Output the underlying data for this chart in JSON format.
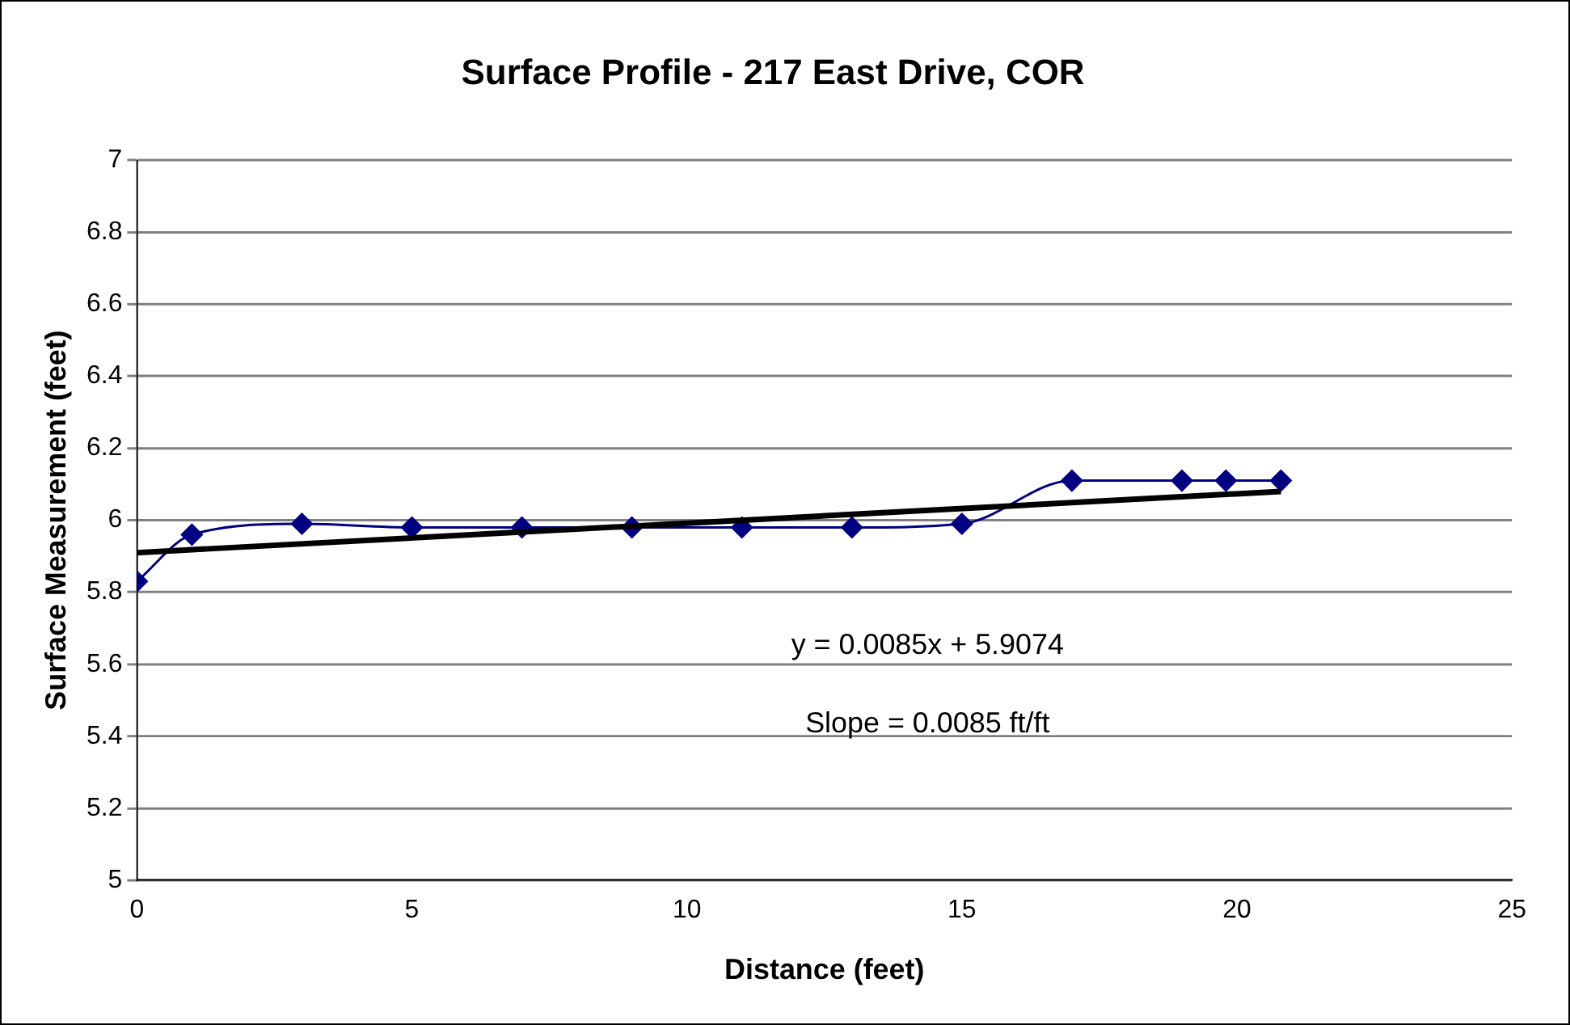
{
  "chart_data": {
    "type": "line",
    "title": "Surface Profile - 217 East Drive, COR",
    "xlabel": "Distance (feet)",
    "ylabel": "Surface Measurement (feet)",
    "x": [
      0,
      1,
      3,
      5,
      7,
      9,
      11,
      13,
      15,
      17,
      19,
      19.8,
      20.8
    ],
    "series": [
      {
        "color": "#000080",
        "marker": "diamond",
        "values": [
          5.83,
          5.96,
          5.99,
          5.98,
          5.98,
          5.98,
          5.98,
          5.98,
          5.99,
          6.11,
          6.11,
          6.11,
          6.11
        ]
      },
      {
        "color": "#000000",
        "marker": "none",
        "x": [
          0,
          20.8
        ],
        "values": [
          5.91,
          6.08
        ]
      }
    ],
    "xlim": [
      0,
      25
    ],
    "xticks": [
      0,
      5,
      10,
      15,
      20,
      25
    ],
    "ylim": [
      5,
      7
    ],
    "yticks": [
      5,
      5.2,
      5.4,
      5.6,
      5.8,
      6,
      6.2,
      6.4,
      6.6,
      6.8,
      7
    ],
    "grid": "y",
    "legend": false,
    "annotations": [
      "y = 0.0085x + 5.9074",
      "Slope = 0.0085 ft/ft"
    ]
  }
}
